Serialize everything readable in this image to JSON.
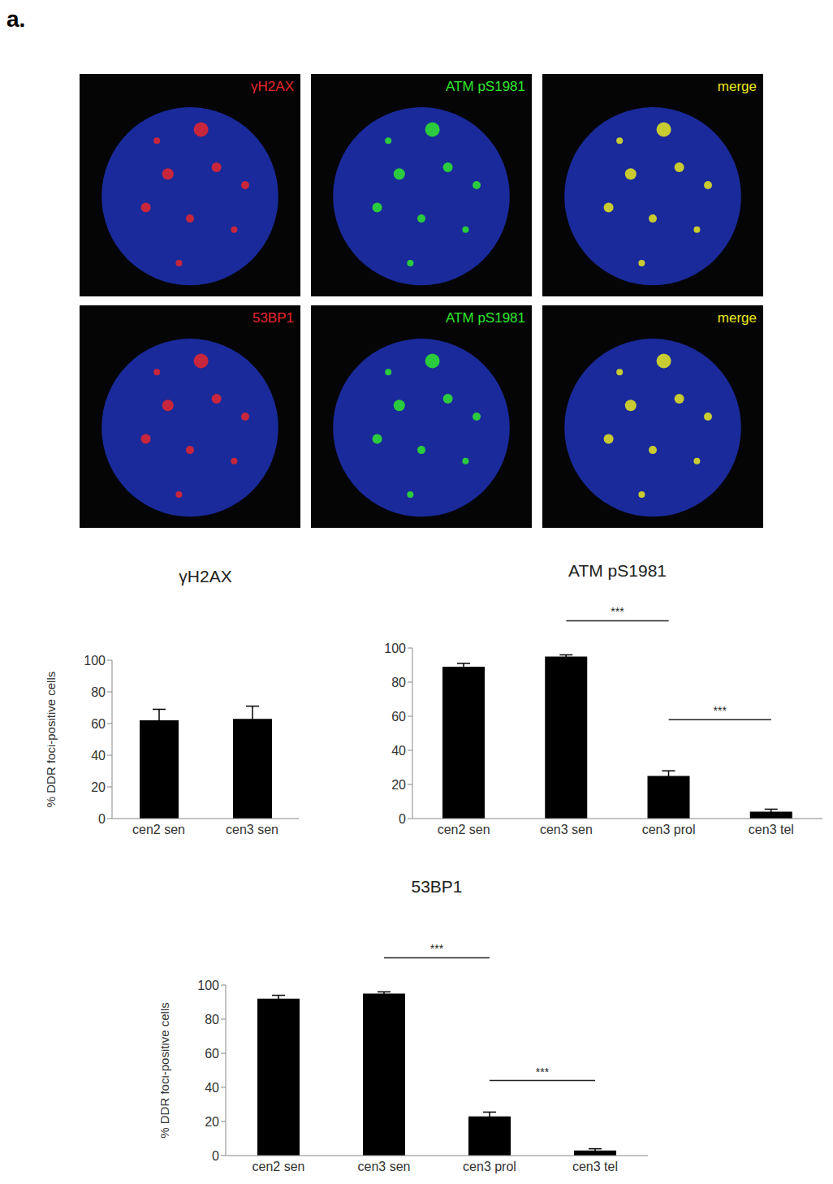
{
  "panel_label": "a.",
  "image_panels": [
    [
      {
        "label": "γH2AX",
        "color": "#e8262b"
      },
      {
        "label": "ATM pS1981",
        "color": "#2ee82e"
      },
      {
        "label": "merge",
        "color": "#e8e81e"
      }
    ],
    [
      {
        "label": "53BP1",
        "color": "#e8262b"
      },
      {
        "label": "ATM pS1981",
        "color": "#2ee82e"
      },
      {
        "label": "merge",
        "color": "#e8e81e"
      }
    ]
  ],
  "chart_data": [
    {
      "type": "bar",
      "title": "γH2AX",
      "y_label": "% DDR foci-positive cells",
      "categories": [
        "cen2 sen",
        "cen3 sen"
      ],
      "values": [
        62,
        63
      ],
      "errors": [
        7,
        8
      ],
      "color": "#000000",
      "ylim": [
        0,
        100
      ],
      "yticks": [
        0,
        20,
        40,
        60,
        80,
        100
      ],
      "grid": false,
      "annotations": []
    },
    {
      "type": "bar",
      "title": "ATM pS1981",
      "categories": [
        "cen2 sen",
        "cen3 sen",
        "cen3 prol",
        "cen3 tel"
      ],
      "values": [
        89,
        95,
        25,
        4
      ],
      "errors": [
        2,
        1,
        3,
        1.5
      ],
      "color": "#000000",
      "ylim": [
        0,
        100
      ],
      "yticks": [
        0,
        20,
        40,
        60,
        80,
        100
      ],
      "grid": false,
      "annotations": [
        {
          "text": "***",
          "from": "cen3 sen",
          "to": "cen3 prol",
          "y": 116
        },
        {
          "text": "***",
          "from": "cen3 prol",
          "to": "cen3 tel",
          "y": 58
        }
      ]
    },
    {
      "type": "bar",
      "title": "53BP1",
      "y_label": "% DDR foci-positive cells",
      "categories": [
        "cen2 sen",
        "cen3 sen",
        "cen3 prol",
        "cen3 tel"
      ],
      "values": [
        92,
        95,
        23,
        3
      ],
      "errors": [
        2,
        1,
        2.5,
        1
      ],
      "color": "#000000",
      "ylim": [
        0,
        100
      ],
      "yticks": [
        0,
        20,
        40,
        60,
        80,
        100
      ],
      "grid": false,
      "annotations": [
        {
          "text": "***",
          "from": "cen3 sen",
          "to": "cen3 prol",
          "y": 116
        },
        {
          "text": "***",
          "from": "cen3 prol",
          "to": "cen3 tel",
          "y": 44
        }
      ]
    }
  ]
}
